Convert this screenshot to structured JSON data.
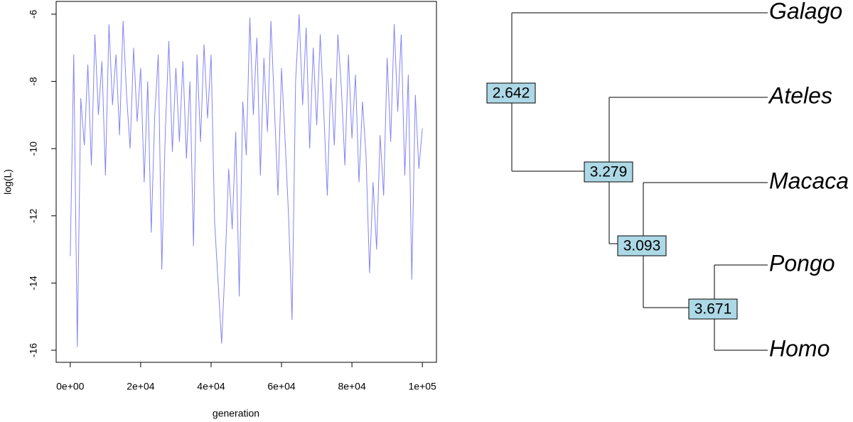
{
  "chart_data": [
    {
      "type": "line",
      "xlabel": "generation",
      "ylabel": "log(L)",
      "color": "#8484f4",
      "x": [
        0,
        1000,
        2000,
        3000,
        4000,
        5000,
        6000,
        7000,
        8000,
        9000,
        10000,
        11000,
        12000,
        13000,
        14000,
        15000,
        16000,
        17000,
        18000,
        19000,
        20000,
        21000,
        22000,
        23000,
        24000,
        25000,
        26000,
        27000,
        28000,
        29000,
        30000,
        31000,
        32000,
        33000,
        34000,
        35000,
        36000,
        37000,
        38000,
        39000,
        40000,
        41000,
        42000,
        43000,
        44000,
        45000,
        46000,
        47000,
        48000,
        49000,
        50000,
        51000,
        52000,
        53000,
        54000,
        55000,
        56000,
        57000,
        58000,
        59000,
        60000,
        61000,
        62000,
        63000,
        64000,
        65000,
        66000,
        67000,
        68000,
        69000,
        70000,
        71000,
        72000,
        73000,
        74000,
        75000,
        76000,
        77000,
        78000,
        79000,
        80000,
        81000,
        82000,
        83000,
        84000,
        85000,
        86000,
        87000,
        88000,
        89000,
        90000,
        91000,
        92000,
        93000,
        94000,
        95000,
        96000,
        97000,
        98000,
        99000,
        100000
      ],
      "values": [
        -13.2,
        -7.2,
        -15.9,
        -8.5,
        -9.9,
        -7.5,
        -10.5,
        -6.6,
        -9.0,
        -7.4,
        -10.8,
        -6.3,
        -8.7,
        -7.2,
        -9.6,
        -6.2,
        -8.4,
        -10.0,
        -7.0,
        -9.2,
        -7.6,
        -11.0,
        -8.0,
        -12.5,
        -9.0,
        -7.2,
        -13.6,
        -9.5,
        -6.8,
        -10.1,
        -7.6,
        -9.8,
        -7.4,
        -10.3,
        -8.0,
        -12.9,
        -7.2,
        -9.8,
        -6.9,
        -9.1,
        -7.2,
        -12.2,
        -14.0,
        -15.8,
        -13.4,
        -10.6,
        -12.4,
        -9.5,
        -14.4,
        -8.6,
        -10.2,
        -6.1,
        -9.0,
        -6.7,
        -10.8,
        -7.3,
        -9.5,
        -6.2,
        -8.8,
        -11.4,
        -7.6,
        -9.7,
        -12.0,
        -15.1,
        -8.0,
        -6.0,
        -8.7,
        -6.4,
        -10.0,
        -7.0,
        -9.3,
        -6.6,
        -8.9,
        -11.4,
        -7.9,
        -9.9,
        -6.6,
        -8.2,
        -10.5,
        -7.2,
        -9.7,
        -7.8,
        -11.0,
        -8.6,
        -10.2,
        -13.7,
        -11.0,
        -13.0,
        -9.6,
        -11.4,
        -7.3,
        -9.8,
        -6.3,
        -8.9,
        -6.6,
        -10.8,
        -7.8,
        -13.9,
        -8.4,
        -10.6,
        -9.4
      ],
      "xlim": [
        -4000,
        104000
      ],
      "ylim": [
        -16.36,
        -5.62
      ],
      "xticks": [
        {
          "value": 0,
          "label": "0e+00"
        },
        {
          "value": 20000,
          "label": "2e+04"
        },
        {
          "value": 40000,
          "label": "4e+04"
        },
        {
          "value": 60000,
          "label": "6e+04"
        },
        {
          "value": 80000,
          "label": "8e+04"
        },
        {
          "value": 100000,
          "label": "1e+05"
        }
      ],
      "yticks": [
        -16,
        -14,
        -12,
        -10,
        -8,
        -6
      ]
    },
    {
      "type": "tree",
      "tips": [
        "Galago",
        "Ateles",
        "Macaca",
        "Pongo",
        "Homo"
      ],
      "node_labels": [
        2.642,
        3.279,
        3.093,
        3.671
      ],
      "node_color": "#add8e6"
    }
  ]
}
